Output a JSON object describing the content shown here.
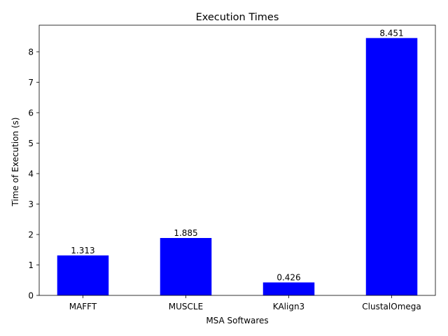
{
  "chart_data": {
    "type": "bar",
    "title": "Execution Times",
    "xlabel": "MSA Softwares",
    "ylabel": "Time of Execution (s)",
    "categories": [
      "MAFFT",
      "MUSCLE",
      "KAlign3",
      "ClustalOmega"
    ],
    "values": [
      1.313,
      1.885,
      0.426,
      8.451
    ],
    "value_labels": [
      "1.313",
      "1.885",
      "0.426",
      "8.451"
    ],
    "bar_color": "#0000ff",
    "ylim": [
      0,
      8.873
    ],
    "yticks": [
      0,
      1,
      2,
      3,
      4,
      5,
      6,
      7,
      8
    ],
    "grid": false,
    "legend": "none"
  }
}
